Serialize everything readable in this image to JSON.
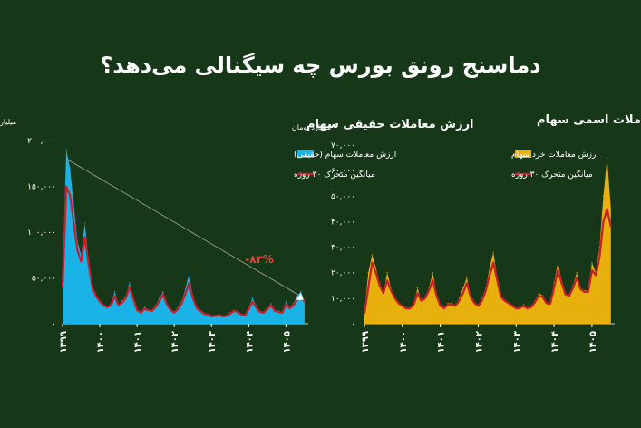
{
  "headline": "دماسنج رونق بورس چه سیگنالی می‌دهد؟",
  "colors": {
    "background": "#173818",
    "real_fill": "#19b3e8",
    "nominal_fill": "#e8b00c",
    "ma_line": "#c81e2c",
    "trend_line": "#9a9a9a",
    "annotation": "#e8453c"
  },
  "chart_data": [
    {
      "type": "area",
      "title": "ارزش معاملات حقیقی سهام",
      "ylabel": "میلیارد تومان",
      "ylim": [
        0,
        200000
      ],
      "yticks": [
        "۰",
        "۵۰,۰۰۰",
        "۱۰۰,۰۰۰",
        "۱۵۰,۰۰۰",
        "۲۰۰,۰۰۰"
      ],
      "ytick_values": [
        0,
        50000,
        100000,
        150000,
        200000
      ],
      "xlim": [
        1399,
        1405.6
      ],
      "xticks": [
        "۱۳۹۹",
        "۱۴۰۰",
        "۱۴۰۱",
        "۱۴۰۲",
        "۱۴۰۳",
        "۱۴۰۴",
        "۱۴۰۵"
      ],
      "xtick_values": [
        1399,
        1400,
        1401,
        1402,
        1403,
        1404,
        1405
      ],
      "legend": [
        "ارزش معاملات سهام (حقیقی)",
        "میانگین متحرک ۳۰ روزه"
      ],
      "legend_position": "top-right",
      "annotation": "-۸۳%",
      "trend_from": [
        1399.1,
        180000
      ],
      "trend_to": [
        1405.4,
        30000
      ],
      "series": [
        {
          "name": "ارزش معاملات سهام (حقیقی)",
          "kind": "value",
          "x": [
            1399.0,
            1399.1,
            1399.2,
            1399.3,
            1399.4,
            1399.5,
            1399.6,
            1399.7,
            1399.8,
            1399.9,
            1400.0,
            1400.1,
            1400.2,
            1400.3,
            1400.4,
            1400.5,
            1400.6,
            1400.7,
            1400.8,
            1400.9,
            1401.0,
            1401.1,
            1401.2,
            1401.3,
            1401.4,
            1401.5,
            1401.6,
            1401.7,
            1401.8,
            1401.9,
            1402.0,
            1402.1,
            1402.2,
            1402.3,
            1402.4,
            1402.5,
            1402.6,
            1402.7,
            1402.8,
            1402.9,
            1403.0,
            1403.1,
            1403.2,
            1403.3,
            1403.4,
            1403.5,
            1403.6,
            1403.7,
            1403.8,
            1403.9,
            1404.0,
            1404.1,
            1404.2,
            1404.3,
            1404.4,
            1404.5,
            1404.6,
            1404.7,
            1404.8,
            1404.9,
            1405.0,
            1405.1,
            1405.2,
            1405.3,
            1405.4,
            1405.5
          ],
          "values": [
            50000,
            190000,
            170000,
            130000,
            90000,
            75000,
            110000,
            70000,
            40000,
            30000,
            25000,
            20000,
            18000,
            22000,
            35000,
            20000,
            25000,
            30000,
            45000,
            28000,
            15000,
            12000,
            18000,
            15000,
            14000,
            20000,
            28000,
            35000,
            22000,
            15000,
            12000,
            18000,
            25000,
            38000,
            55000,
            30000,
            18000,
            15000,
            12000,
            10000,
            8000,
            9000,
            10000,
            8000,
            9000,
            12000,
            15000,
            14000,
            10000,
            9000,
            18000,
            28000,
            20000,
            14000,
            12000,
            17000,
            22000,
            15000,
            14000,
            13000,
            24000,
            18000,
            22000,
            30000,
            35000,
            25000
          ]
        },
        {
          "name": "میانگین متحرک ۳۰ روزه",
          "kind": "ma",
          "x": [
            1399.0,
            1399.1,
            1399.2,
            1399.3,
            1399.4,
            1399.5,
            1399.6,
            1399.7,
            1399.8,
            1399.9,
            1400.0,
            1400.1,
            1400.2,
            1400.3,
            1400.4,
            1400.5,
            1400.6,
            1400.7,
            1400.8,
            1400.9,
            1401.0,
            1401.1,
            1401.2,
            1401.3,
            1401.4,
            1401.5,
            1401.6,
            1401.7,
            1401.8,
            1401.9,
            1402.0,
            1402.1,
            1402.2,
            1402.3,
            1402.4,
            1402.5,
            1402.6,
            1402.7,
            1402.8,
            1402.9,
            1403.0,
            1403.1,
            1403.2,
            1403.3,
            1403.4,
            1403.5,
            1403.6,
            1403.7,
            1403.8,
            1403.9,
            1404.0,
            1404.1,
            1404.2,
            1404.3,
            1404.4,
            1404.5,
            1404.6,
            1404.7,
            1404.8,
            1404.9,
            1405.0,
            1405.1,
            1405.2,
            1405.3,
            1405.4,
            1405.5
          ],
          "values": [
            40000,
            150000,
            140000,
            110000,
            80000,
            68000,
            95000,
            65000,
            40000,
            30000,
            24000,
            20000,
            18000,
            20000,
            30000,
            20000,
            23000,
            28000,
            40000,
            27000,
            15000,
            12000,
            16000,
            15000,
            14000,
            18000,
            25000,
            32000,
            21000,
            15000,
            12000,
            16000,
            22000,
            33000,
            45000,
            28000,
            17000,
            14000,
            11000,
            10000,
            8000,
            8500,
            9500,
            8000,
            8500,
            11000,
            14000,
            13000,
            10000,
            9000,
            16000,
            24000,
            18000,
            13000,
            12000,
            16000,
            20000,
            14000,
            13000,
            12000,
            21000,
            17000,
            20000,
            26000,
            30000,
            24000
          ]
        }
      ]
    },
    {
      "type": "area",
      "title": "ارزش معاملات اسمی سهام",
      "ylabel": "میلیارد تومان",
      "ylim": [
        0,
        70000
      ],
      "yticks": [
        "۰",
        "۱۰,۰۰۰",
        "۲۰,۰۰۰",
        "۳۰,۰۰۰",
        "۴۰,۰۰۰",
        "۵۰,۰۰۰",
        "۶۰,۰۰۰",
        "۷۰,۰۰۰"
      ],
      "ytick_values": [
        0,
        10000,
        20000,
        30000,
        40000,
        50000,
        60000,
        70000
      ],
      "xlim": [
        1399,
        1405.6
      ],
      "xticks": [
        "۱۳۹۹",
        "۱۴۰۰",
        "۱۴۰۱",
        "۱۴۰۲",
        "۱۴۰۳",
        "۱۴۰۴",
        "۱۴۰۵"
      ],
      "xtick_values": [
        1399,
        1400,
        1401,
        1402,
        1403,
        1404,
        1405
      ],
      "legend": [
        "ارزش معاملات خرد سهام",
        "میانگین متحرک ۳۰ روزه"
      ],
      "legend_position": "top-right",
      "series": [
        {
          "name": "ارزش معاملات خرد سهام",
          "kind": "value",
          "x": [
            1399.0,
            1399.1,
            1399.2,
            1399.3,
            1399.4,
            1399.5,
            1399.6,
            1399.7,
            1399.8,
            1399.9,
            1400.0,
            1400.1,
            1400.2,
            1400.3,
            1400.4,
            1400.5,
            1400.6,
            1400.7,
            1400.8,
            1400.9,
            1401.0,
            1401.1,
            1401.2,
            1401.3,
            1401.4,
            1401.5,
            1401.6,
            1401.7,
            1401.8,
            1401.9,
            1402.0,
            1402.1,
            1402.2,
            1402.3,
            1402.4,
            1402.5,
            1402.6,
            1402.7,
            1402.8,
            1402.9,
            1403.0,
            1403.1,
            1403.2,
            1403.3,
            1403.4,
            1403.5,
            1403.6,
            1403.7,
            1403.8,
            1403.9,
            1404.0,
            1404.1,
            1404.2,
            1404.3,
            1404.4,
            1404.5,
            1404.6,
            1404.7,
            1404.8,
            1404.9,
            1405.0,
            1405.1,
            1405.2,
            1405.3,
            1405.4,
            1405.5
          ],
          "values": [
            5000,
            20000,
            27000,
            22000,
            16000,
            12000,
            20000,
            14000,
            10000,
            8000,
            7000,
            6000,
            6000,
            8000,
            14000,
            9000,
            10000,
            14000,
            20000,
            12000,
            7000,
            6000,
            8000,
            8000,
            7000,
            10000,
            14000,
            18000,
            11000,
            8000,
            7000,
            10000,
            14000,
            22000,
            28000,
            18000,
            11000,
            9000,
            8000,
            7000,
            6000,
            6500,
            7500,
            6000,
            7000,
            9000,
            12000,
            11000,
            8000,
            8000,
            16000,
            24000,
            17000,
            12000,
            11000,
            15000,
            20000,
            14000,
            13000,
            13000,
            24000,
            20000,
            30000,
            50000,
            65000,
            45000
          ]
        },
        {
          "name": "میانگین متحرک ۳۰ روزه",
          "kind": "ma",
          "x": [
            1399.0,
            1399.1,
            1399.2,
            1399.3,
            1399.4,
            1399.5,
            1399.6,
            1399.7,
            1399.8,
            1399.9,
            1400.0,
            1400.1,
            1400.2,
            1400.3,
            1400.4,
            1400.5,
            1400.6,
            1400.7,
            1400.8,
            1400.9,
            1401.0,
            1401.1,
            1401.2,
            1401.3,
            1401.4,
            1401.5,
            1401.6,
            1401.7,
            1401.8,
            1401.9,
            1402.0,
            1402.1,
            1402.2,
            1402.3,
            1402.4,
            1402.5,
            1402.6,
            1402.7,
            1402.8,
            1402.9,
            1403.0,
            1403.1,
            1403.2,
            1403.3,
            1403.4,
            1403.5,
            1403.6,
            1403.7,
            1403.8,
            1403.9,
            1404.0,
            1404.1,
            1404.2,
            1404.3,
            1404.4,
            1404.5,
            1404.6,
            1404.7,
            1404.8,
            1404.9,
            1405.0,
            1405.1,
            1405.2,
            1405.3,
            1405.4,
            1405.5
          ],
          "values": [
            4000,
            14000,
            24000,
            20000,
            15000,
            12000,
            17000,
            13000,
            10000,
            8000,
            7000,
            6000,
            6000,
            7500,
            12000,
            9000,
            10000,
            13000,
            17000,
            11000,
            7000,
            6000,
            7500,
            7500,
            7000,
            9000,
            12000,
            16000,
            10500,
            8000,
            7000,
            9000,
            13000,
            19000,
            24000,
            17000,
            10500,
            9000,
            8000,
            7000,
            6000,
            6200,
            7000,
            6000,
            6500,
            8500,
            11000,
            10500,
            8000,
            7800,
            14000,
            21000,
            16000,
            11500,
            11000,
            14000,
            18000,
            13500,
            12500,
            12500,
            21000,
            19000,
            26000,
            40000,
            45000,
            38000
          ]
        }
      ]
    }
  ]
}
